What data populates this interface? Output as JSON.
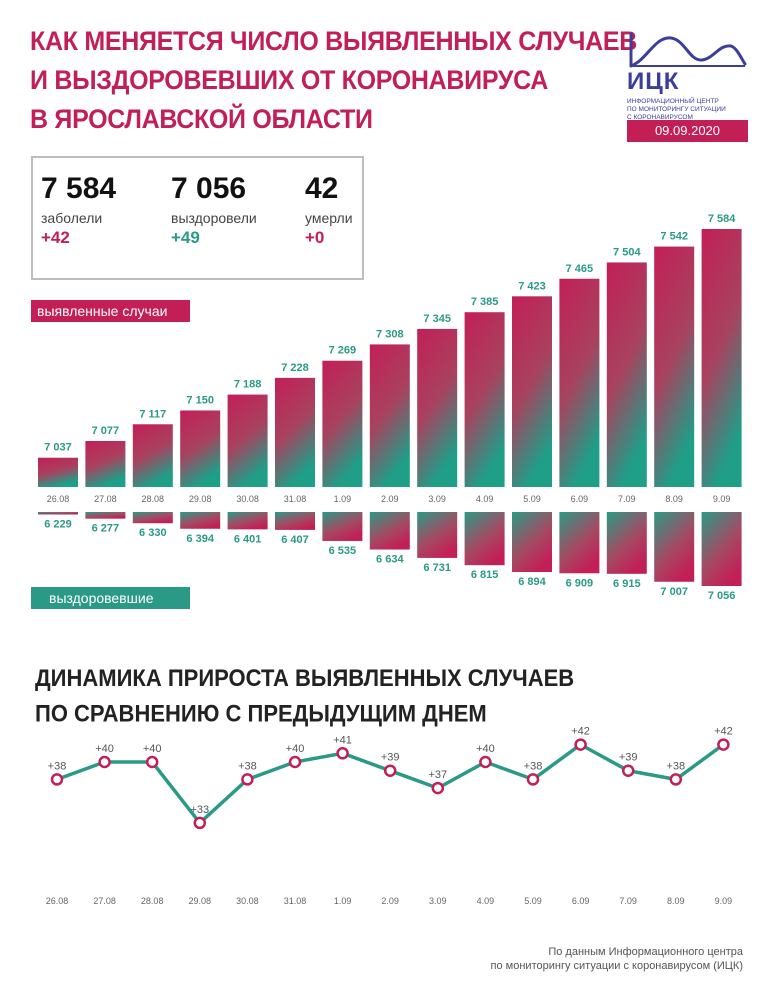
{
  "header": {
    "title_lines": [
      "КАК МЕНЯЕТСЯ ЧИСЛО ВЫЯВЛЕННЫХ СЛУЧАЕВ",
      "И ВЫЗДОРОВЕВШИХ ОТ КОРОНАВИРУСА",
      "В ЯРОСЛАВСКОЙ ОБЛАСТИ"
    ],
    "logo_name": "ИЦК",
    "logo_sub_lines": [
      "ИНФОРМАЦИОННЫЙ ЦЕНТР",
      "ПО МОНИТОРИНГУ СИТУАЦИИ",
      "С КОРОНАВИРУСОМ"
    ],
    "date": "09.09.2020"
  },
  "summary": {
    "cases": {
      "value": "7 584",
      "label": "заболели",
      "delta": "+42"
    },
    "recovered": {
      "value": "7 056",
      "label": "выздоровели",
      "delta": "+49"
    },
    "deaths": {
      "value": "42",
      "label": "умерли",
      "delta": "+0"
    }
  },
  "labels": {
    "cases_series": "выявленные случаи",
    "recovered_series": "выздоровевшие"
  },
  "subtitle_lines": [
    "ДИНАМИКА ПРИРОСТА ВЫЯВЛЕННЫХ СЛУЧАЕВ",
    "ПО СРАВНЕНИЮ С ПРЕДЫДУЩИМ ДНЕМ"
  ],
  "source_lines": [
    "По данным Информационного центра",
    "по мониторингу ситуации с коронавирусом (ИЦК)"
  ],
  "colors": {
    "accent_red": "#c21f57",
    "accent_teal": "#2a9a86",
    "logo_blue": "#3b3f9a"
  },
  "chart_data": [
    {
      "type": "bar",
      "categories": [
        "26.08",
        "27.08",
        "28.08",
        "29.08",
        "30.08",
        "31.08",
        "1.09",
        "2.09",
        "3.09",
        "4.09",
        "5.09",
        "6.09",
        "7.09",
        "8.09",
        "9.09"
      ],
      "series": [
        {
          "name": "выявленные случаи",
          "values": [
            7037,
            7077,
            7117,
            7150,
            7188,
            7228,
            7269,
            7308,
            7345,
            7385,
            7423,
            7465,
            7504,
            7542,
            7584
          ],
          "labels": [
            "7 037",
            "7 077",
            "7 117",
            "7 150",
            "7 188",
            "7 228",
            "7 269",
            "7 308",
            "7 345",
            "7 385",
            "7 423",
            "7 465",
            "7 504",
            "7 542",
            "7 584"
          ]
        },
        {
          "name": "выздоровевшие",
          "values": [
            6229,
            6277,
            6330,
            6394,
            6401,
            6407,
            6535,
            6634,
            6731,
            6815,
            6894,
            6909,
            6915,
            7007,
            7056
          ],
          "labels": [
            "6 229",
            "6 277",
            "6 330",
            "6 394",
            "6 401",
            "6 407",
            "6 535",
            "6 634",
            "6 731",
            "6 815",
            "6 894",
            "6 909",
            "6 915",
            "7 007",
            "7 056"
          ]
        }
      ]
    },
    {
      "type": "line",
      "categories": [
        "26.08",
        "27.08",
        "28.08",
        "29.08",
        "30.08",
        "31.08",
        "1.09",
        "2.09",
        "3.09",
        "4.09",
        "5.09",
        "6.09",
        "7.09",
        "8.09",
        "9.09"
      ],
      "values": [
        38,
        40,
        40,
        33,
        38,
        40,
        41,
        39,
        37,
        40,
        38,
        42,
        39,
        38,
        42
      ],
      "labels": [
        "+38",
        "+40",
        "+40",
        "+33",
        "+38",
        "+40",
        "+41",
        "+39",
        "+37",
        "+40",
        "+38",
        "+42",
        "+39",
        "+38",
        "+42"
      ]
    }
  ]
}
